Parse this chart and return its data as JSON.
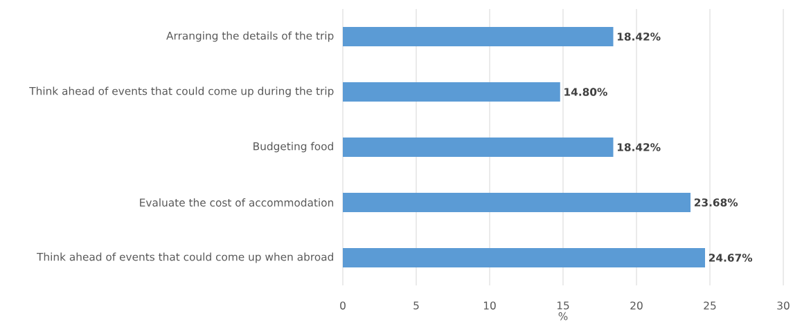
{
  "chart_data": {
    "type": "bar",
    "orientation": "horizontal",
    "xlabel": "%",
    "categories": [
      "Arranging the details of the trip",
      "Think ahead of events that could come up during the trip",
      "Budgeting food",
      "Evaluate the cost of accommodation",
      "Think ahead of events that could come up when abroad"
    ],
    "values": [
      18.42,
      14.8,
      18.42,
      23.68,
      24.67
    ],
    "value_labels": [
      "18.42%",
      "14.80%",
      "18.42%",
      "23.68%",
      "24.67%"
    ],
    "color": "#5b9bd5",
    "xlim": [
      0,
      30
    ],
    "xticks": [
      0,
      5,
      10,
      15,
      20,
      25,
      30
    ],
    "grid": "x"
  }
}
